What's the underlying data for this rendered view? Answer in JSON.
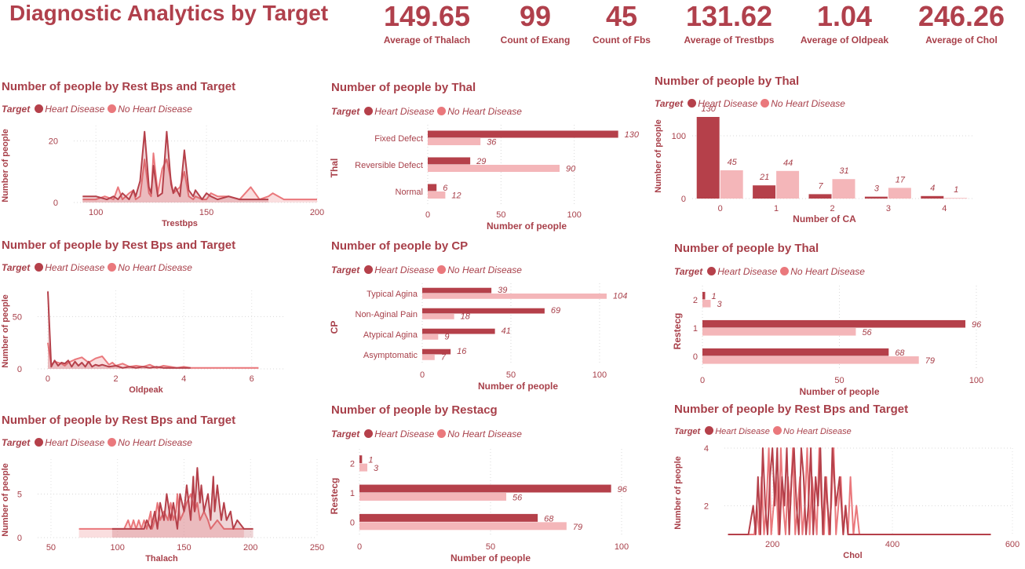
{
  "header": {
    "title": "Diagnostic Analytics by Target",
    "kpis": [
      {
        "value": "149.65",
        "label": "Average of Thalach"
      },
      {
        "value": "99",
        "label": "Count of Exang"
      },
      {
        "value": "45",
        "label": "Count of Fbs"
      },
      {
        "value": "131.62",
        "label": "Average of Trestbps"
      },
      {
        "value": "1.04",
        "label": "Average of Oldpeak"
      },
      {
        "value": "246.26",
        "label": "Average of Chol"
      }
    ]
  },
  "legend": {
    "title": "Target",
    "series": [
      "Heart Disease",
      "No Heart Disease"
    ],
    "colors": {
      "heart_disease": "#b5404a",
      "no_heart_disease": "#f4b6b9",
      "no_heart_disease_line": "#ea787c"
    }
  },
  "chart_data": [
    {
      "id": "trestbps",
      "type": "area",
      "title": "Number of people by Rest Bps and Target",
      "xlabel": "Trestbps",
      "ylabel": "Number of people",
      "xlim": [
        90,
        200
      ],
      "ylim": [
        0,
        25
      ],
      "xticks": [
        100,
        150,
        200
      ],
      "yticks": [
        0,
        20
      ],
      "series": [
        {
          "name": "Heart Disease",
          "x": [
            94,
            100,
            105,
            108,
            110,
            112,
            115,
            117,
            118,
            120,
            122,
            124,
            125,
            126,
            128,
            130,
            132,
            134,
            135,
            136,
            138,
            140,
            142,
            144,
            145,
            148,
            150,
            152,
            155,
            160,
            165,
            170,
            178
          ],
          "values": [
            2,
            2,
            1,
            2,
            1,
            3,
            1,
            4,
            2,
            7,
            23,
            5,
            3,
            12,
            2,
            3,
            23,
            6,
            3,
            5,
            2,
            17,
            4,
            2,
            4,
            1,
            3,
            2,
            1,
            2,
            1,
            1,
            1
          ]
        },
        {
          "name": "No Heart Disease",
          "x": [
            94,
            100,
            104,
            108,
            110,
            112,
            115,
            117,
            118,
            120,
            122,
            124,
            125,
            126,
            128,
            130,
            132,
            134,
            135,
            138,
            140,
            142,
            144,
            145,
            148,
            150,
            152,
            155,
            160,
            165,
            170,
            174,
            178,
            180,
            185,
            190,
            200
          ],
          "values": [
            1,
            1,
            2,
            1,
            5,
            1,
            3,
            4,
            1,
            2,
            14,
            3,
            2,
            16,
            3,
            11,
            14,
            7,
            3,
            5,
            10,
            2,
            1,
            2,
            1,
            1,
            3,
            2,
            2,
            1,
            5,
            1,
            2,
            3,
            1,
            1,
            1
          ]
        }
      ]
    },
    {
      "id": "oldpeak",
      "type": "area",
      "title": "Number of people by Rest Bps and Target",
      "xlabel": "Oldpeak",
      "ylabel": "Number of people",
      "xlim": [
        -0.3,
        7
      ],
      "ylim": [
        0,
        75
      ],
      "xticks": [
        0,
        2,
        4,
        6
      ],
      "yticks": [
        0,
        50
      ],
      "series": [
        {
          "name": "Heart Disease",
          "x": [
            0,
            0.1,
            0.2,
            0.3,
            0.4,
            0.5,
            0.6,
            0.7,
            0.8,
            0.9,
            1.0,
            1.1,
            1.2,
            1.3,
            1.4,
            1.5,
            1.6,
            1.8,
            2.0,
            2.2,
            2.4,
            2.6,
            2.8,
            3.0,
            3.2,
            3.4,
            3.6,
            4.0,
            4.2
          ],
          "values": [
            74,
            2,
            8,
            3,
            6,
            5,
            8,
            2,
            7,
            3,
            6,
            2,
            7,
            2,
            4,
            3,
            4,
            2,
            3,
            1,
            2,
            1,
            2,
            1,
            2,
            1,
            1,
            1,
            1
          ]
        },
        {
          "name": "No Heart Disease",
          "x": [
            0,
            0.1,
            0.2,
            0.4,
            0.5,
            0.6,
            0.8,
            1.0,
            1.2,
            1.4,
            1.6,
            1.8,
            1.9,
            2.0,
            2.2,
            2.4,
            2.6,
            2.8,
            3.0,
            3.2,
            3.4,
            3.6,
            3.8,
            4.0,
            4.2,
            4.4,
            5.6,
            6.2
          ],
          "values": [
            25,
            4,
            7,
            5,
            3,
            6,
            9,
            11,
            6,
            10,
            12,
            4,
            6,
            3,
            5,
            2,
            3,
            2,
            4,
            1,
            3,
            2,
            1,
            2,
            1,
            1,
            1,
            1
          ]
        }
      ]
    },
    {
      "id": "thalach",
      "type": "area",
      "title": "Number of people by Rest Bps and Target",
      "xlabel": "Thalach",
      "ylabel": "Number of people",
      "xlim": [
        40,
        250
      ],
      "ylim": [
        0,
        9
      ],
      "xticks": [
        50,
        100,
        150,
        200,
        250
      ],
      "yticks": [
        0,
        5
      ],
      "series": [
        {
          "name": "Heart Disease",
          "x": [
            96,
            100,
            105,
            110,
            115,
            120,
            122,
            125,
            128,
            130,
            132,
            135,
            137,
            140,
            142,
            145,
            147,
            150,
            152,
            155,
            157,
            158,
            160,
            162,
            163,
            165,
            168,
            170,
            172,
            173,
            175,
            178,
            180,
            182,
            185,
            187,
            190,
            195,
            202
          ],
          "values": [
            1,
            1,
            1,
            1,
            1,
            1,
            2,
            1,
            3,
            1,
            4,
            2,
            5,
            2,
            4,
            1,
            5,
            3,
            6,
            2,
            7,
            3,
            8,
            4,
            6,
            3,
            5,
            2,
            7,
            3,
            6,
            2,
            4,
            2,
            3,
            1,
            2,
            1,
            1
          ]
        },
        {
          "name": "No Heart Disease",
          "x": [
            71,
            90,
            100,
            105,
            108,
            110,
            112,
            114,
            116,
            118,
            120,
            122,
            125,
            126,
            128,
            130,
            132,
            135,
            138,
            140,
            142,
            144,
            145,
            147,
            150,
            152,
            155,
            158,
            160,
            162,
            165,
            168,
            170,
            175,
            180,
            186,
            195
          ],
          "values": [
            1,
            1,
            1,
            1,
            2,
            1,
            2,
            1,
            2,
            1,
            2,
            1,
            3,
            1,
            2,
            4,
            2,
            3,
            2,
            4,
            2,
            3,
            5,
            2,
            3,
            4,
            5,
            3,
            4,
            2,
            3,
            2,
            1,
            2,
            1,
            1,
            1
          ]
        }
      ]
    },
    {
      "id": "thal_h",
      "type": "bar",
      "orientation": "horizontal",
      "title": "Number of people by Thal",
      "xlabel": "Number of people",
      "ylabel": "Thal",
      "xlim": [
        0,
        135
      ],
      "xticks": [
        0,
        50,
        100
      ],
      "categories": [
        "Fixed Defect",
        "Reversible Defect",
        "Normal"
      ],
      "series": [
        {
          "name": "Heart Disease",
          "values": [
            130,
            29,
            6
          ]
        },
        {
          "name": "No Heart Disease",
          "values": [
            36,
            90,
            12
          ]
        }
      ]
    },
    {
      "id": "cp_h",
      "type": "bar",
      "orientation": "horizontal",
      "title": "Number of people by CP",
      "xlabel": "Number of people",
      "ylabel": "CP",
      "xlim": [
        0,
        108
      ],
      "xticks": [
        0,
        50,
        100
      ],
      "categories": [
        "Typical Agina",
        "Non-Aginal Pain",
        "Atypical Agina",
        "Asymptomatic"
      ],
      "series": [
        {
          "name": "Heart Disease",
          "values": [
            39,
            69,
            41,
            16
          ]
        },
        {
          "name": "No Heart Disease",
          "values": [
            104,
            18,
            9,
            7
          ]
        }
      ]
    },
    {
      "id": "restecg_mid",
      "type": "bar",
      "orientation": "horizontal",
      "title": "Number of people by Restacg",
      "xlabel": "Number of people",
      "ylabel": "Restecg",
      "xlim": [
        0,
        100
      ],
      "xticks": [
        0,
        50,
        100
      ],
      "categories": [
        "2",
        "1",
        "0"
      ],
      "series": [
        {
          "name": "Heart Disease",
          "values": [
            1,
            96,
            68
          ]
        },
        {
          "name": "No Heart Disease",
          "values": [
            3,
            56,
            79
          ]
        }
      ]
    },
    {
      "id": "ca_v",
      "type": "bar",
      "orientation": "vertical",
      "title": "Number of people by Thal",
      "xlabel": "Number of CA",
      "ylabel": "Number of people",
      "ylim": [
        0,
        130
      ],
      "yticks": [
        0,
        100
      ],
      "categories": [
        "0",
        "1",
        "2",
        "3",
        "4"
      ],
      "series": [
        {
          "name": "Heart Disease",
          "values": [
            130,
            21,
            7,
            3,
            4
          ]
        },
        {
          "name": "No Heart Disease",
          "values": [
            45,
            44,
            31,
            17,
            1
          ]
        }
      ]
    },
    {
      "id": "restecg_right",
      "type": "bar",
      "orientation": "horizontal",
      "title": "Number of people by Thal",
      "xlabel": "Number of people",
      "ylabel": "Restecg",
      "xlim": [
        0,
        100
      ],
      "xticks": [
        0,
        50,
        100
      ],
      "categories": [
        "2",
        "1",
        "0"
      ],
      "series": [
        {
          "name": "Heart Disease",
          "values": [
            1,
            96,
            68
          ]
        },
        {
          "name": "No Heart Disease",
          "values": [
            3,
            56,
            79
          ]
        }
      ]
    },
    {
      "id": "chol",
      "type": "line",
      "title": "Number of people by Rest Bps and Target",
      "xlabel": "Chol",
      "ylabel": "Number of people",
      "xlim": [
        120,
        600
      ],
      "ylim": [
        1,
        4
      ],
      "xticks": [
        200,
        400,
        600
      ],
      "yticks": [
        2,
        4
      ],
      "series": [
        {
          "name": "Heart Disease",
          "x": [
            126,
            150,
            160,
            168,
            172,
            176,
            180,
            184,
            188,
            192,
            196,
            200,
            204,
            208,
            212,
            216,
            220,
            224,
            228,
            232,
            236,
            240,
            244,
            248,
            252,
            256,
            260,
            264,
            268,
            272,
            276,
            280,
            284,
            288,
            292,
            296,
            300,
            306,
            312,
            318,
            322,
            326,
            330,
            340,
            350,
            360,
            564
          ],
          "values": [
            1,
            1,
            1,
            2,
            1,
            3,
            1,
            4,
            2,
            1,
            3,
            4,
            2,
            4,
            1,
            3,
            2,
            4,
            1,
            3,
            4,
            2,
            1,
            4,
            3,
            1,
            2,
            4,
            1,
            3,
            2,
            4,
            1,
            3,
            2,
            1,
            4,
            2,
            3,
            1,
            2,
            1,
            1,
            1,
            1,
            1,
            1
          ]
        },
        {
          "name": "No Heart Disease",
          "x": [
            126,
            140,
            160,
            170,
            174,
            178,
            182,
            186,
            190,
            194,
            198,
            202,
            206,
            210,
            214,
            218,
            222,
            226,
            230,
            234,
            238,
            242,
            246,
            250,
            254,
            258,
            262,
            266,
            270,
            274,
            278,
            282,
            286,
            290,
            294,
            298,
            302,
            306,
            310,
            314,
            318,
            322,
            326,
            330,
            335,
            340,
            345,
            350,
            360,
            380,
            407
          ],
          "values": [
            1,
            1,
            1,
            1,
            2,
            1,
            3,
            1,
            2,
            4,
            1,
            2,
            3,
            1,
            4,
            2,
            1,
            3,
            2,
            4,
            1,
            2,
            3,
            1,
            2,
            4,
            1,
            3,
            2,
            1,
            4,
            2,
            1,
            3,
            1,
            2,
            4,
            1,
            2,
            3,
            1,
            2,
            1,
            3,
            1,
            2,
            1,
            1,
            1,
            1,
            1
          ]
        }
      ]
    }
  ]
}
